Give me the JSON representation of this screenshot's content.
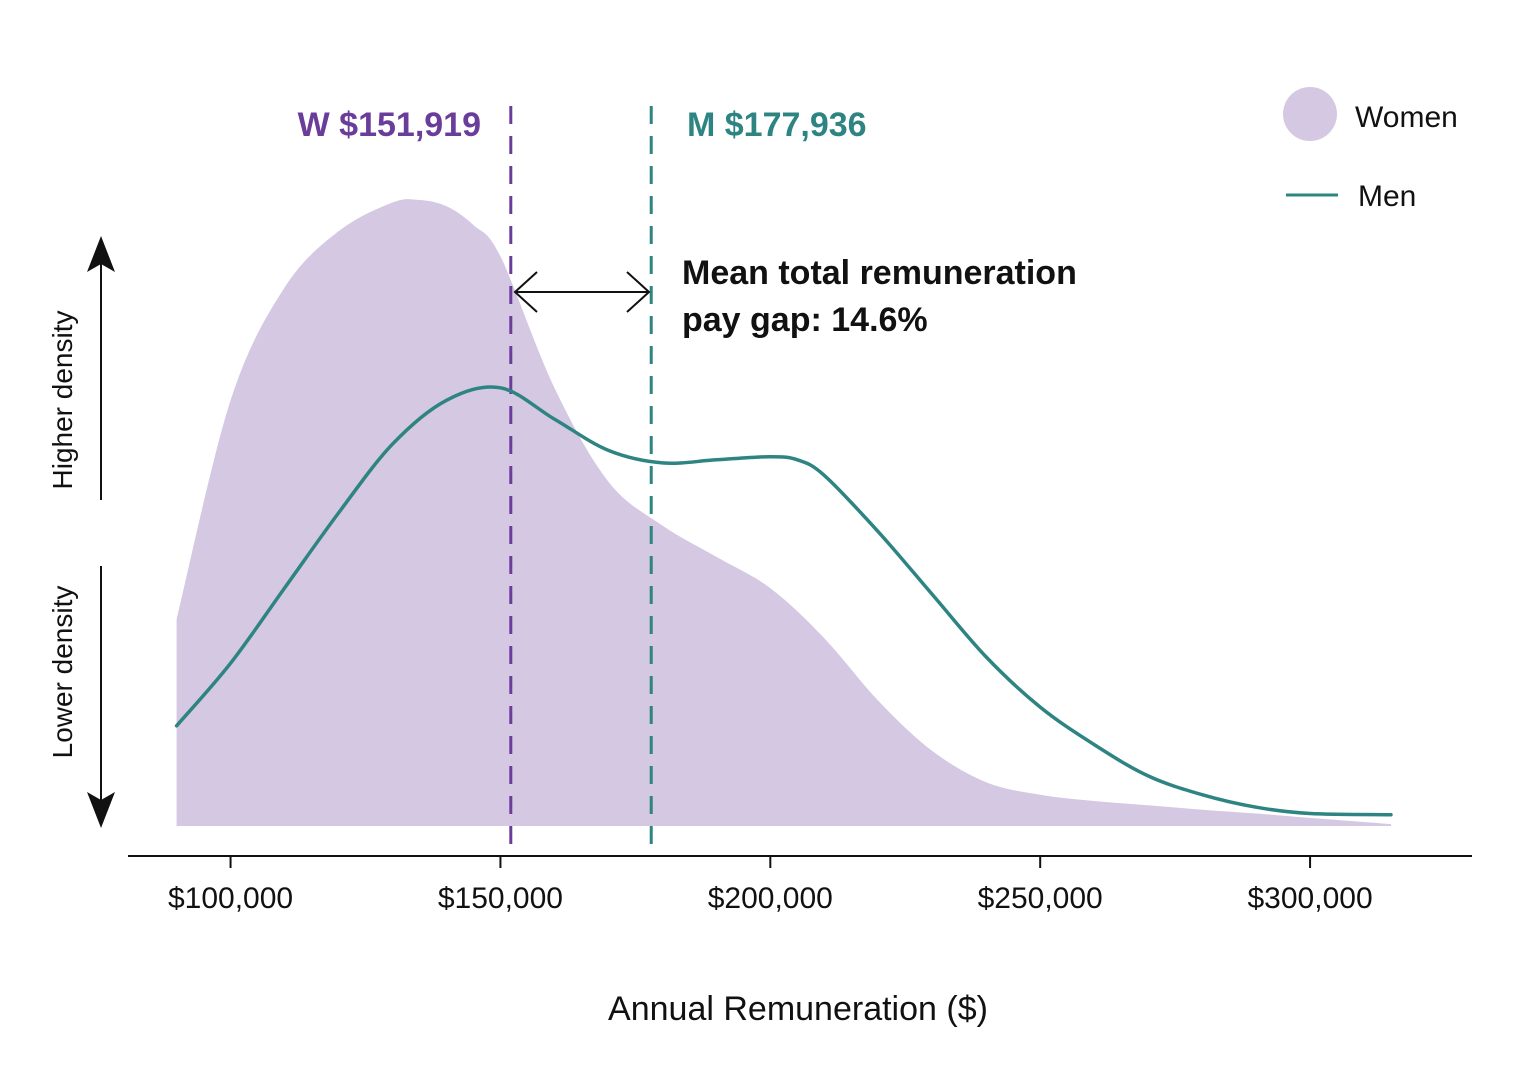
{
  "chart_data": {
    "type": "area",
    "xlabel": "Annual Remuneration ($)",
    "xlim": [
      81000,
      330000
    ],
    "ylim": [
      0,
      1
    ],
    "x_ticks": [
      100000,
      150000,
      200000,
      250000,
      300000
    ],
    "x_tick_labels": [
      "$100,000",
      "$150,000",
      "$200,000",
      "$250,000",
      "$300,000"
    ],
    "density_labels": {
      "high": "Higher density",
      "low": "Lower density"
    },
    "legend": {
      "placement": "top-right",
      "women": "Women",
      "men": "Men"
    },
    "colors": {
      "women": "#d4c8e3",
      "men": "#2e8482",
      "women_mean": "#6b3d9a",
      "men_mean": "#2e8482",
      "axis": "#111111"
    },
    "means": {
      "women": {
        "x": 151919,
        "label": "W $151,919"
      },
      "men": {
        "x": 177936,
        "label": "M $177,936"
      }
    },
    "annotation": {
      "line1": "Mean total remuneration",
      "line2": "pay gap: 14.6%"
    },
    "series": [
      {
        "name": "Women",
        "kind": "area",
        "x": [
          90000,
          100000,
          110000,
          120000,
          130000,
          135000,
          140000,
          145000,
          150000,
          160000,
          170000,
          180000,
          190000,
          200000,
          210000,
          220000,
          230000,
          240000,
          250000,
          260000,
          270000,
          280000,
          290000,
          300000,
          315000
        ],
        "y": [
          0.33,
          0.68,
          0.86,
          0.95,
          0.996,
          1.0,
          0.99,
          0.96,
          0.91,
          0.7,
          0.55,
          0.48,
          0.43,
          0.38,
          0.3,
          0.2,
          0.12,
          0.07,
          0.05,
          0.04,
          0.033,
          0.026,
          0.02,
          0.013,
          0.003
        ]
      },
      {
        "name": "Men",
        "kind": "line",
        "x": [
          90000,
          100000,
          110000,
          120000,
          130000,
          140000,
          150000,
          160000,
          170000,
          180000,
          190000,
          200000,
          205000,
          210000,
          220000,
          230000,
          240000,
          250000,
          260000,
          270000,
          280000,
          290000,
          300000,
          315000
        ],
        "y": [
          0.16,
          0.26,
          0.38,
          0.5,
          0.61,
          0.68,
          0.7,
          0.65,
          0.6,
          0.58,
          0.585,
          0.59,
          0.585,
          0.56,
          0.47,
          0.37,
          0.27,
          0.19,
          0.13,
          0.08,
          0.05,
          0.03,
          0.02,
          0.018
        ]
      }
    ]
  }
}
